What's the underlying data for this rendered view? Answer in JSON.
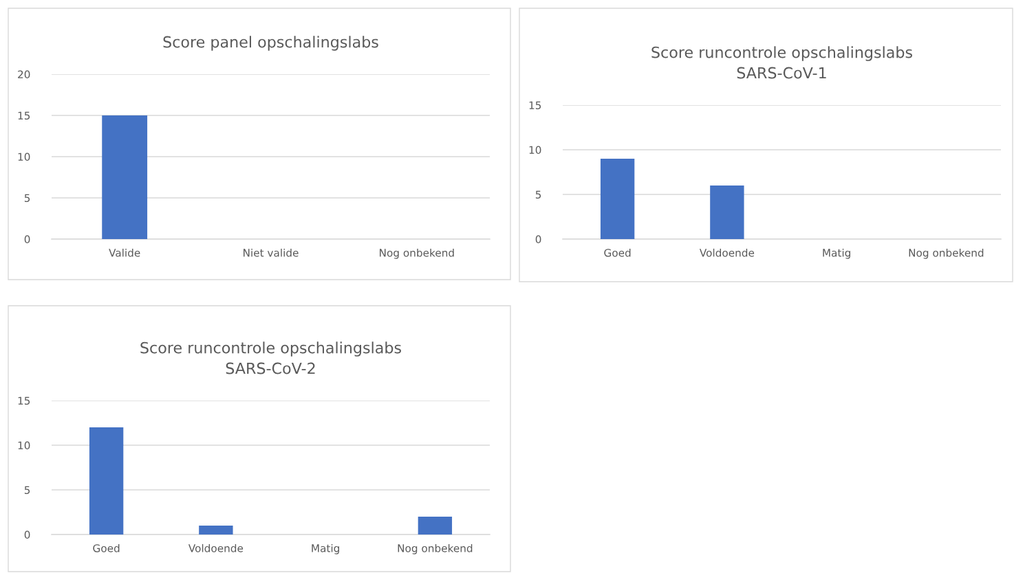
{
  "chart_data": [
    {
      "type": "bar",
      "title": "Score panel opschalingslabs",
      "categories": [
        "Valide",
        "Niet valide",
        "Nog onbekend"
      ],
      "values": [
        15,
        0,
        0
      ],
      "color": "#4472c4",
      "ylim": [
        0,
        20
      ],
      "yticks": [
        0,
        5,
        10,
        15,
        20
      ],
      "grid": "y"
    },
    {
      "type": "bar",
      "title": "Score runcontrole opschalingslabs\nSARS-CoV-1",
      "categories": [
        "Goed",
        "Voldoende",
        "Matig",
        "Nog onbekend"
      ],
      "values": [
        9,
        6,
        0,
        0
      ],
      "color": "#4472c4",
      "ylim": [
        0,
        15
      ],
      "yticks": [
        0,
        5,
        10,
        15
      ],
      "grid": "y"
    },
    {
      "type": "bar",
      "title": "Score runcontrole opschalingslabs\nSARS-CoV-2",
      "categories": [
        "Goed",
        "Voldoende",
        "Matig",
        "Nog onbekend"
      ],
      "values": [
        12,
        1,
        0,
        2
      ],
      "color": "#4472c4",
      "ylim": [
        0,
        15
      ],
      "yticks": [
        0,
        5,
        10,
        15
      ],
      "grid": "y"
    }
  ]
}
